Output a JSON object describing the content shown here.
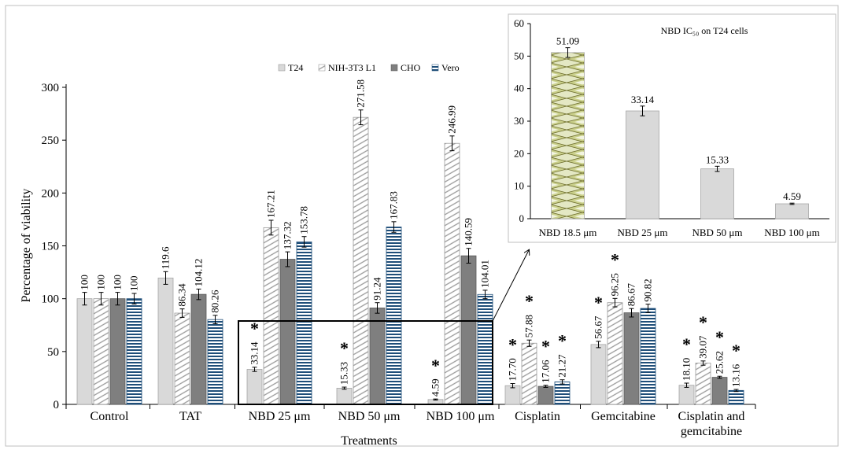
{
  "chart_data": [
    {
      "type": "bar",
      "xlabel": "Treatments",
      "ylabel": "Percentage of viability",
      "ylim": [
        0,
        300
      ],
      "yticks": [
        0,
        50,
        100,
        150,
        200,
        250,
        300
      ],
      "categories": [
        "Control",
        "TAT",
        "NBD 25 μm",
        "NBD 50 μm",
        "NBD 100 μm",
        "Cisplatin",
        "Gemcitabine",
        "Cisplatin and gemcitabine"
      ],
      "legend_position": "top",
      "series": [
        {
          "name": "T24",
          "values": [
            100,
            119.6,
            33.14,
            15.33,
            4.59,
            17.7,
            56.67,
            18.1
          ],
          "labels": [
            "100",
            "119.6",
            "33.14",
            "15.33",
            "4.59",
            "17.70",
            "56.67",
            "18.10"
          ],
          "errors": [
            6,
            6,
            2,
            1,
            0.5,
            2,
            3,
            2
          ]
        },
        {
          "name": "NIH-3T3 L1",
          "values": [
            100,
            86.34,
            167.21,
            271.58,
            246.99,
            57.88,
            96.25,
            39.07
          ],
          "labels": [
            "100",
            "86.34",
            "167.21",
            "271.58",
            "246.99",
            "57.88",
            "96.25",
            "39.07"
          ],
          "errors": [
            6,
            4,
            7,
            7,
            7,
            3,
            4,
            2
          ]
        },
        {
          "name": "CHO",
          "values": [
            100,
            104.12,
            137.32,
            91.24,
            140.59,
            17.06,
            86.67,
            25.62
          ],
          "labels": [
            "100",
            "104.12",
            "137.32",
            "91.24",
            "140.59",
            "17.06",
            "86.67",
            "25.62"
          ],
          "errors": [
            6,
            5,
            7,
            5,
            7,
            1,
            4,
            1
          ]
        },
        {
          "name": "Vero",
          "values": [
            100,
            80.26,
            153.78,
            167.83,
            104.01,
            21.27,
            90.82,
            13.16
          ],
          "labels": [
            "100",
            "80.26",
            "153.78",
            "167.83",
            "104.01",
            "21.27",
            "90.82",
            "13.16"
          ],
          "errors": [
            5,
            4,
            5,
            5,
            4,
            2,
            4,
            1
          ]
        }
      ],
      "significance_marker": "*",
      "significance_marks": [
        [
          2,
          0
        ],
        [
          3,
          0
        ],
        [
          4,
          0
        ],
        [
          5,
          0
        ],
        [
          5,
          1
        ],
        [
          5,
          2
        ],
        [
          5,
          3
        ],
        [
          6,
          0
        ],
        [
          6,
          1
        ],
        [
          7,
          0
        ],
        [
          7,
          1
        ],
        [
          7,
          2
        ],
        [
          7,
          3
        ]
      ],
      "colors": {
        "T24": "#d9d9d9",
        "NIH-3T3 L1": "#ffffff",
        "CHO": "#7f7f7f",
        "Vero": "#1f4e79"
      }
    },
    {
      "type": "bar",
      "title": "NBD IC₅₀ on T24 cells",
      "ylim": [
        0,
        60
      ],
      "yticks": [
        0,
        10,
        20,
        30,
        40,
        50,
        60
      ],
      "categories": [
        "NBD 18.5 μm",
        "NBD 25 μm",
        "NBD 50 μm",
        "NBD 100 μm"
      ],
      "values": [
        51.09,
        33.14,
        15.33,
        4.59
      ],
      "labels": [
        "51.09",
        "33.14",
        "15.33",
        "4.59"
      ],
      "errors": [
        1.5,
        1.5,
        0.8,
        0.2
      ],
      "colors": {
        "bar": "#d9d9d9",
        "highlight": "#dde3b4",
        "highlight_pattern": "#7a7a30"
      }
    }
  ]
}
